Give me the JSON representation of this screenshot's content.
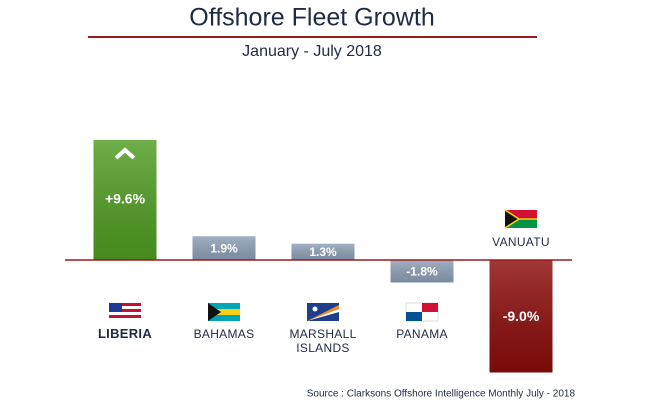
{
  "chart_data": {
    "type": "bar",
    "title": "Offshore Fleet Growth",
    "subtitle": "January - July 2018",
    "categories": [
      "LIBERIA",
      "BAHAMAS",
      "MARSHALL ISLANDS",
      "PANAMA",
      "VANUATU"
    ],
    "values": [
      9.6,
      1.9,
      1.3,
      -1.8,
      -9.0
    ],
    "value_labels": [
      "+9.6%",
      "1.9%",
      "1.3%",
      "-1.8%",
      "-9.0%"
    ],
    "colors": [
      "#4f9d22",
      "#8d9fb6",
      "#8d9fb6",
      "#8d9fb6",
      "#8a0c0c"
    ],
    "source": "Source : Clarksons Offshore Intelligence Monthly July - 2018"
  }
}
